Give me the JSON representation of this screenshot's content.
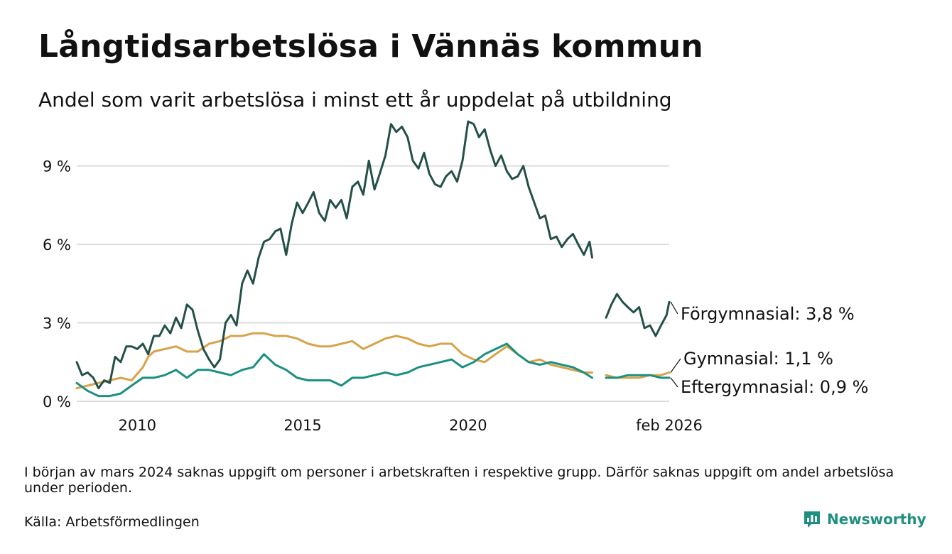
{
  "title": "Långtidsarbetslösa i Vännäs kommun",
  "subtitle": "Andel som varit arbetslösa i minst ett år uppdelat på utbildning",
  "note": "I början av mars 2024 saknas uppgift om personer i arbetskraften i respektive grupp. Därför saknas uppgift om andel arbetslösa under perioden.",
  "source": "Källa: Arbetsförmedlingen",
  "brand": "Newsworthy",
  "colors": {
    "forgymnasial": "#24504a",
    "gymnasial": "#d8a24a",
    "eftergymnasial": "#1b9080",
    "grid": "#dddddd",
    "brand": "#1f8f7f"
  },
  "chart_data": {
    "type": "line",
    "title": "Långtidsarbetslösa i Vännäs kommun",
    "subtitle": "Andel som varit arbetslösa i minst ett år uppdelat på utbildning",
    "xlabel": "",
    "ylabel": "",
    "x_range": [
      2008.17,
      2026.08
    ],
    "ylim": [
      0,
      11
    ],
    "y_ticks": [
      0,
      3,
      6,
      9
    ],
    "y_tick_labels": [
      "0 %",
      "3 %",
      "6 %",
      "9 %"
    ],
    "x_ticks": [
      2010,
      2015,
      2020,
      2026.08
    ],
    "x_tick_labels": [
      "2010",
      "2015",
      "2020",
      "feb 2026"
    ],
    "grid": true,
    "gap": [
      2023.83,
      2024.17
    ],
    "series": [
      {
        "name": "Förgymnasial",
        "label": "Förgymnasial: 3,8 %",
        "color_key": "forgymnasial",
        "points": [
          [
            2008.17,
            1.5
          ],
          [
            2008.33,
            1.0
          ],
          [
            2008.5,
            1.1
          ],
          [
            2008.67,
            0.9
          ],
          [
            2008.83,
            0.5
          ],
          [
            2009.0,
            0.8
          ],
          [
            2009.17,
            0.7
          ],
          [
            2009.33,
            1.7
          ],
          [
            2009.5,
            1.5
          ],
          [
            2009.67,
            2.1
          ],
          [
            2009.83,
            2.1
          ],
          [
            2010.0,
            2.0
          ],
          [
            2010.17,
            2.2
          ],
          [
            2010.33,
            1.8
          ],
          [
            2010.5,
            2.5
          ],
          [
            2010.67,
            2.5
          ],
          [
            2010.83,
            2.9
          ],
          [
            2011.0,
            2.6
          ],
          [
            2011.17,
            3.2
          ],
          [
            2011.33,
            2.8
          ],
          [
            2011.5,
            3.7
          ],
          [
            2011.67,
            3.5
          ],
          [
            2011.83,
            2.7
          ],
          [
            2012.0,
            2.0
          ],
          [
            2012.17,
            1.6
          ],
          [
            2012.33,
            1.3
          ],
          [
            2012.5,
            1.6
          ],
          [
            2012.67,
            3.0
          ],
          [
            2012.83,
            3.3
          ],
          [
            2013.0,
            2.9
          ],
          [
            2013.17,
            4.5
          ],
          [
            2013.33,
            5.0
          ],
          [
            2013.5,
            4.5
          ],
          [
            2013.67,
            5.5
          ],
          [
            2013.83,
            6.1
          ],
          [
            2014.0,
            6.2
          ],
          [
            2014.17,
            6.5
          ],
          [
            2014.33,
            6.6
          ],
          [
            2014.5,
            5.6
          ],
          [
            2014.67,
            6.8
          ],
          [
            2014.83,
            7.6
          ],
          [
            2015.0,
            7.2
          ],
          [
            2015.17,
            7.6
          ],
          [
            2015.33,
            8.0
          ],
          [
            2015.5,
            7.2
          ],
          [
            2015.67,
            6.9
          ],
          [
            2015.83,
            7.7
          ],
          [
            2016.0,
            7.4
          ],
          [
            2016.17,
            7.7
          ],
          [
            2016.33,
            7.0
          ],
          [
            2016.5,
            8.2
          ],
          [
            2016.67,
            8.4
          ],
          [
            2016.83,
            7.9
          ],
          [
            2017.0,
            9.2
          ],
          [
            2017.17,
            8.1
          ],
          [
            2017.33,
            8.7
          ],
          [
            2017.5,
            9.4
          ],
          [
            2017.67,
            10.6
          ],
          [
            2017.83,
            10.3
          ],
          [
            2018.0,
            10.5
          ],
          [
            2018.17,
            10.1
          ],
          [
            2018.33,
            9.2
          ],
          [
            2018.5,
            8.9
          ],
          [
            2018.67,
            9.5
          ],
          [
            2018.83,
            8.7
          ],
          [
            2019.0,
            8.3
          ],
          [
            2019.17,
            8.2
          ],
          [
            2019.33,
            8.6
          ],
          [
            2019.5,
            8.8
          ],
          [
            2019.67,
            8.4
          ],
          [
            2019.83,
            9.2
          ],
          [
            2020.0,
            10.7
          ],
          [
            2020.17,
            10.6
          ],
          [
            2020.33,
            10.1
          ],
          [
            2020.5,
            10.4
          ],
          [
            2020.67,
            9.6
          ],
          [
            2020.83,
            9.0
          ],
          [
            2021.0,
            9.4
          ],
          [
            2021.17,
            8.8
          ],
          [
            2021.33,
            8.5
          ],
          [
            2021.5,
            8.6
          ],
          [
            2021.67,
            9.0
          ],
          [
            2021.83,
            8.2
          ],
          [
            2022.0,
            7.6
          ],
          [
            2022.17,
            7.0
          ],
          [
            2022.33,
            7.1
          ],
          [
            2022.5,
            6.2
          ],
          [
            2022.67,
            6.3
          ],
          [
            2022.83,
            5.9
          ],
          [
            2023.0,
            6.2
          ],
          [
            2023.17,
            6.4
          ],
          [
            2023.33,
            6.0
          ],
          [
            2023.5,
            5.6
          ],
          [
            2023.67,
            6.1
          ],
          [
            2023.75,
            5.5
          ],
          null,
          [
            2024.17,
            3.2
          ],
          [
            2024.33,
            3.7
          ],
          [
            2024.5,
            4.1
          ],
          [
            2024.67,
            3.8
          ],
          [
            2024.83,
            3.6
          ],
          [
            2025.0,
            3.4
          ],
          [
            2025.17,
            3.6
          ],
          [
            2025.33,
            2.8
          ],
          [
            2025.5,
            2.9
          ],
          [
            2025.67,
            2.5
          ],
          [
            2025.83,
            2.9
          ],
          [
            2026.0,
            3.3
          ],
          [
            2026.08,
            3.8
          ]
        ]
      },
      {
        "name": "Gymnasial",
        "label": "Gymnasial: 1,1 %",
        "color_key": "gymnasial",
        "points": [
          [
            2008.17,
            0.5
          ],
          [
            2008.5,
            0.6
          ],
          [
            2008.83,
            0.7
          ],
          [
            2009.17,
            0.8
          ],
          [
            2009.5,
            0.9
          ],
          [
            2009.83,
            0.8
          ],
          [
            2010.17,
            1.3
          ],
          [
            2010.33,
            1.7
          ],
          [
            2010.5,
            1.9
          ],
          [
            2010.83,
            2.0
          ],
          [
            2011.17,
            2.1
          ],
          [
            2011.5,
            1.9
          ],
          [
            2011.83,
            1.9
          ],
          [
            2012.17,
            2.2
          ],
          [
            2012.5,
            2.3
          ],
          [
            2012.83,
            2.5
          ],
          [
            2013.17,
            2.5
          ],
          [
            2013.5,
            2.6
          ],
          [
            2013.83,
            2.6
          ],
          [
            2014.17,
            2.5
          ],
          [
            2014.5,
            2.5
          ],
          [
            2014.83,
            2.4
          ],
          [
            2015.17,
            2.2
          ],
          [
            2015.5,
            2.1
          ],
          [
            2015.83,
            2.1
          ],
          [
            2016.17,
            2.2
          ],
          [
            2016.5,
            2.3
          ],
          [
            2016.83,
            2.0
          ],
          [
            2017.17,
            2.2
          ],
          [
            2017.5,
            2.4
          ],
          [
            2017.83,
            2.5
          ],
          [
            2018.17,
            2.4
          ],
          [
            2018.5,
            2.2
          ],
          [
            2018.83,
            2.1
          ],
          [
            2019.17,
            2.2
          ],
          [
            2019.5,
            2.2
          ],
          [
            2019.83,
            1.8
          ],
          [
            2020.17,
            1.6
          ],
          [
            2020.5,
            1.5
          ],
          [
            2020.83,
            1.8
          ],
          [
            2021.17,
            2.1
          ],
          [
            2021.5,
            1.8
          ],
          [
            2021.83,
            1.5
          ],
          [
            2022.17,
            1.6
          ],
          [
            2022.5,
            1.4
          ],
          [
            2022.83,
            1.3
          ],
          [
            2023.17,
            1.2
          ],
          [
            2023.5,
            1.1
          ],
          [
            2023.75,
            1.1
          ],
          null,
          [
            2024.17,
            1.0
          ],
          [
            2024.5,
            0.9
          ],
          [
            2024.83,
            0.9
          ],
          [
            2025.17,
            0.9
          ],
          [
            2025.5,
            1.0
          ],
          [
            2025.83,
            1.0
          ],
          [
            2026.08,
            1.1
          ]
        ]
      },
      {
        "name": "Eftergymnasial",
        "label": "Eftergymnasial: 0,9 %",
        "color_key": "eftergymnasial",
        "points": [
          [
            2008.17,
            0.7
          ],
          [
            2008.5,
            0.4
          ],
          [
            2008.83,
            0.2
          ],
          [
            2009.17,
            0.2
          ],
          [
            2009.5,
            0.3
          ],
          [
            2009.83,
            0.6
          ],
          [
            2010.17,
            0.9
          ],
          [
            2010.5,
            0.9
          ],
          [
            2010.83,
            1.0
          ],
          [
            2011.17,
            1.2
          ],
          [
            2011.5,
            0.9
          ],
          [
            2011.83,
            1.2
          ],
          [
            2012.17,
            1.2
          ],
          [
            2012.5,
            1.1
          ],
          [
            2012.83,
            1.0
          ],
          [
            2013.17,
            1.2
          ],
          [
            2013.5,
            1.3
          ],
          [
            2013.83,
            1.8
          ],
          [
            2014.17,
            1.4
          ],
          [
            2014.5,
            1.2
          ],
          [
            2014.83,
            0.9
          ],
          [
            2015.17,
            0.8
          ],
          [
            2015.5,
            0.8
          ],
          [
            2015.83,
            0.8
          ],
          [
            2016.17,
            0.6
          ],
          [
            2016.5,
            0.9
          ],
          [
            2016.83,
            0.9
          ],
          [
            2017.17,
            1.0
          ],
          [
            2017.5,
            1.1
          ],
          [
            2017.83,
            1.0
          ],
          [
            2018.17,
            1.1
          ],
          [
            2018.5,
            1.3
          ],
          [
            2018.83,
            1.4
          ],
          [
            2019.17,
            1.5
          ],
          [
            2019.5,
            1.6
          ],
          [
            2019.83,
            1.3
          ],
          [
            2020.17,
            1.5
          ],
          [
            2020.5,
            1.8
          ],
          [
            2020.83,
            2.0
          ],
          [
            2021.17,
            2.2
          ],
          [
            2021.5,
            1.8
          ],
          [
            2021.83,
            1.5
          ],
          [
            2022.17,
            1.4
          ],
          [
            2022.5,
            1.5
          ],
          [
            2022.83,
            1.4
          ],
          [
            2023.17,
            1.3
          ],
          [
            2023.5,
            1.1
          ],
          [
            2023.75,
            0.9
          ],
          null,
          [
            2024.17,
            0.9
          ],
          [
            2024.5,
            0.9
          ],
          [
            2024.83,
            1.0
          ],
          [
            2025.17,
            1.0
          ],
          [
            2025.5,
            1.0
          ],
          [
            2025.83,
            0.9
          ],
          [
            2026.08,
            0.9
          ]
        ]
      }
    ]
  }
}
